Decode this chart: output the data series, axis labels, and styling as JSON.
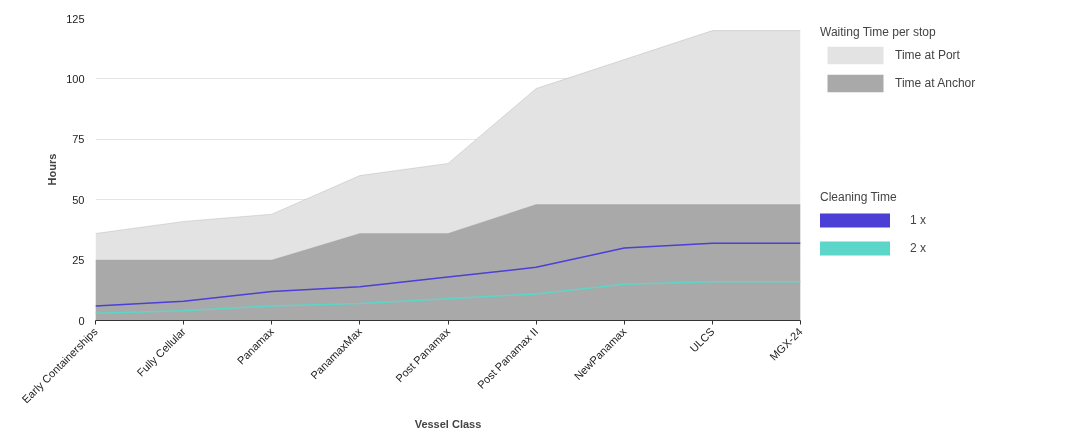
{
  "chart_data": {
    "type": "area",
    "xlabel": "Vessel Class",
    "ylabel": "Hours",
    "legend_title": "Waiting Time per stop",
    "categories": [
      "Early Containerships",
      "Fully Cellular",
      "Panamax",
      "PanamaxMax",
      "Post Panamax",
      "Post Panamax II",
      "NewPanamax",
      "ULCS",
      "MGX-24"
    ],
    "series": [
      {
        "name": "Time at Port",
        "color": "#e3e3e3",
        "values": [
          36,
          41,
          44,
          60,
          65,
          96,
          108,
          120,
          120
        ]
      },
      {
        "name": "Time at Anchor",
        "color": "#a9a9a9",
        "values": [
          25,
          25,
          25,
          36,
          36,
          48,
          48,
          48,
          48
        ]
      },
      {
        "name": "1 x",
        "type": "line",
        "color": "#4b3fd6",
        "values": [
          6,
          8,
          12,
          14,
          18,
          22,
          30,
          32,
          32
        ]
      },
      {
        "name": "2 x",
        "type": "line",
        "color": "#5cd6c8",
        "values": [
          3,
          4,
          6,
          7,
          9,
          11,
          15,
          16,
          16
        ]
      }
    ],
    "annotations": [
      "Cleaning Time"
    ],
    "ylim": [
      0,
      125
    ],
    "yticks": [
      0,
      25,
      50,
      75,
      100,
      125
    ],
    "grid": "y",
    "legend": "right"
  }
}
